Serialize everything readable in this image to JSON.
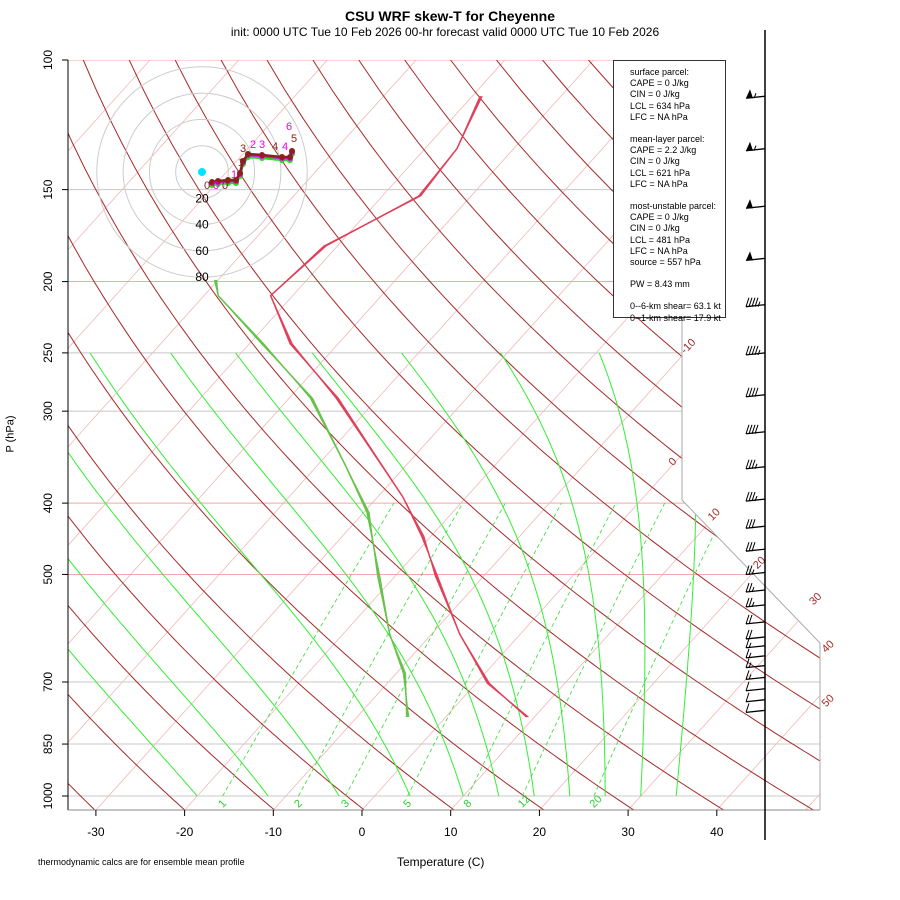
{
  "chart_data": {
    "type": "line",
    "title": "CSU WRF skew-T for Cheyenne",
    "subtitle": "init: 0000 UTC Tue 10 Feb 2026     00-hr forecast valid 0000 UTC Tue 10 Feb 2026",
    "xlabel": "Temperature (C)",
    "ylabel": "P (hPa)",
    "xlim": [
      -33,
      45
    ],
    "ylim": [
      1050,
      100
    ],
    "x_ticks": [
      "-30",
      "-20",
      "-10",
      "0",
      "10",
      "20",
      "30",
      "40"
    ],
    "x_tick_values": [
      -30,
      -20,
      -10,
      0,
      10,
      20,
      30,
      40
    ],
    "y_ticks": [
      "100",
      "150",
      "200",
      "250",
      "300",
      "400",
      "500",
      "700",
      "850",
      "1000"
    ],
    "y_tick_values": [
      100,
      150,
      200,
      250,
      300,
      400,
      500,
      700,
      850,
      1000
    ],
    "isotherm_labels": [
      "-10",
      "0",
      "10",
      "20",
      "30",
      "40",
      "50"
    ],
    "mixing_ratio_labels": [
      "1",
      "2",
      "3",
      "5",
      "8",
      "12",
      "20"
    ],
    "mixing_ratio_values": [
      1,
      2,
      3,
      5,
      8,
      12,
      20
    ],
    "series": [
      {
        "name": "temperature",
        "color": "#e0405a",
        "p": [
          112,
          132,
          153,
          179,
          209,
          243,
          288,
          392,
          444,
          502,
          603,
          703,
          781
        ],
        "T": [
          -59,
          -56.4,
          -55.8,
          -61.4,
          -62.5,
          -55.3,
          -44.6,
          -27.2,
          -20.9,
          -15.4,
          -6.8,
          1.4,
          9.2
        ]
      },
      {
        "name": "dewpoint",
        "color": "#66c24a",
        "p": [
          199,
          209,
          243,
          288,
          355,
          412,
          502,
          603,
          681,
          781
        ],
        "T": [
          -70.3,
          -68.4,
          -58.5,
          -47.5,
          -36.9,
          -29.5,
          -21.9,
          -14.7,
          -9.1,
          -4.3
        ]
      }
    ],
    "wind_barbs": {
      "p": [
        112,
        132,
        158,
        186,
        215,
        250,
        285,
        320,
        357,
        395,
        430,
        462,
        497,
        525,
        550,
        580,
        608,
        625,
        645,
        665,
        690,
        715,
        740,
        765
      ],
      "speed_kt": [
        55,
        55,
        50,
        50,
        45,
        45,
        40,
        40,
        35,
        35,
        30,
        30,
        25,
        25,
        25,
        20,
        20,
        15,
        15,
        15,
        15,
        10,
        10,
        10
      ]
    },
    "hodograph": {
      "ring_labels": [
        "20",
        "40",
        "60",
        "80"
      ],
      "ring_values": [
        20,
        40,
        60,
        80
      ],
      "height_labels": [
        "0",
        "0",
        "0",
        "1",
        "1",
        "2",
        "3",
        "3",
        "4",
        "4",
        "5",
        "6"
      ]
    }
  },
  "info": {
    "surface_header": "surface parcel:",
    "surface_cape": "CAPE = 0 J/kg",
    "surface_cin": "CIN = 0 J/kg",
    "surface_lcl": "LCL = 634 hPa",
    "surface_lfc": "LFC = NA hPa",
    "ml_header": "mean-layer parcel:",
    "ml_cape": "CAPE = 2.2 J/kg",
    "ml_cin": "CIN = 0 J/kg",
    "ml_lcl": "LCL = 621 hPa",
    "ml_lfc": "LFC = NA hPa",
    "mu_header": "most-unstable parcel:",
    "mu_cape": "CAPE = 0 J/kg",
    "mu_cin": "CIN = 0 J/kg",
    "mu_lcl": "LCL = 481 hPa",
    "mu_lfc": "LFC = NA hPa",
    "mu_source": "source = 557 hPa",
    "pw": "PW =  8.43 mm",
    "shear6": "0--6-km shear= 63.1 kt",
    "shear1": "0--1-km shear= 17.9 kt"
  },
  "footer": "thermodynamic calcs are for ensemble mean profile"
}
